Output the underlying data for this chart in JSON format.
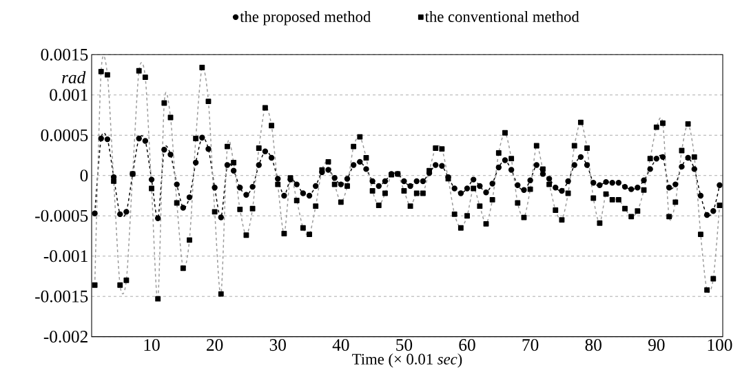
{
  "chart_data": {
    "type": "line",
    "xlabel": "Time (× 0.01 *sec*)",
    "ylabel": "rad",
    "x": [
      1,
      2,
      3,
      4,
      5,
      6,
      7,
      8,
      9,
      10,
      11,
      12,
      13,
      14,
      15,
      16,
      17,
      18,
      19,
      20,
      21,
      22,
      23,
      24,
      25,
      26,
      27,
      28,
      29,
      30,
      31,
      32,
      33,
      34,
      35,
      36,
      37,
      38,
      39,
      40,
      41,
      42,
      43,
      44,
      45,
      46,
      47,
      48,
      49,
      50,
      51,
      52,
      53,
      54,
      55,
      56,
      57,
      58,
      59,
      60,
      61,
      62,
      63,
      64,
      65,
      66,
      67,
      68,
      69,
      70,
      71,
      72,
      73,
      74,
      75,
      76,
      77,
      78,
      79,
      80,
      81,
      82,
      83,
      84,
      85,
      86,
      87,
      88,
      89,
      90,
      91,
      92,
      93,
      94,
      95,
      96,
      97,
      98,
      99,
      100
    ],
    "xlim": [
      0.5,
      100.5
    ],
    "xticks": [
      10,
      20,
      30,
      40,
      50,
      60,
      70,
      80,
      90,
      100
    ],
    "ylim": [
      -0.002,
      0.0015
    ],
    "yticks": [
      -0.002,
      -0.0015,
      -0.001,
      -0.0005,
      0,
      0.0005,
      0.001,
      0.0015
    ],
    "grid": "y",
    "legend": "top",
    "series": [
      {
        "name": "the proposed method",
        "color": "#000000",
        "marker": "circle",
        "line_style": "dashed",
        "values": [
          -0.00047,
          0.00046,
          0.00045,
          -2e-05,
          -0.00048,
          -0.00045,
          2e-05,
          0.00046,
          0.00043,
          -5e-05,
          -0.00053,
          0.00032,
          0.00026,
          -0.00011,
          -0.0004,
          -0.00027,
          0.00016,
          0.00047,
          0.00033,
          -0.00015,
          -0.00052,
          0.00013,
          6e-05,
          -0.00015,
          -0.00024,
          -0.00014,
          0.00013,
          0.0003,
          0.00022,
          -4e-05,
          -0.00025,
          -5e-05,
          -0.00011,
          -0.00022,
          -0.00025,
          -0.00013,
          4e-05,
          7e-05,
          -3e-05,
          -0.00011,
          -4e-05,
          0.00013,
          0.00017,
          8e-05,
          -7e-05,
          -0.00013,
          -7e-05,
          2e-05,
          2e-05,
          -7e-05,
          -0.00013,
          -7e-05,
          -7e-05,
          3e-05,
          0.00013,
          0.00012,
          -2e-05,
          -0.00016,
          -0.00022,
          -0.00016,
          -5e-05,
          -0.00013,
          -0.00021,
          -0.0001,
          0.0001,
          0.00019,
          7e-05,
          -0.00012,
          -0.00018,
          -6e-05,
          0.00013,
          2e-05,
          -4e-05,
          -0.00015,
          -0.00019,
          -7e-05,
          0.00013,
          0.00023,
          0.00013,
          -9e-05,
          -0.00012,
          -8e-05,
          -9e-05,
          -9e-05,
          -0.00014,
          -0.00017,
          -0.00015,
          -6e-05,
          8e-05,
          0.00021,
          0.00023,
          -0.00015,
          -0.00011,
          0.00011,
          0.00022,
          8e-05,
          -0.00025,
          -0.00049,
          -0.00044,
          -0.00012
        ]
      },
      {
        "name": "the conventional method",
        "color": "#999999",
        "marker": "square",
        "line_style": "dashed",
        "values": [
          -0.00136,
          0.00129,
          0.00125,
          -7e-05,
          -0.00136,
          -0.0013,
          2e-05,
          0.0013,
          0.00122,
          -0.00016,
          -0.00153,
          0.0009,
          0.00072,
          -0.00034,
          -0.00115,
          -0.0008,
          0.00046,
          0.00134,
          0.00092,
          -0.00045,
          -0.00147,
          0.00036,
          0.00016,
          -0.00042,
          -0.00074,
          -0.00041,
          0.00034,
          0.00084,
          0.00062,
          -0.00011,
          -0.00072,
          -3e-05,
          -0.00031,
          -0.00065,
          -0.00073,
          -0.00038,
          7e-05,
          0.00017,
          -0.00011,
          -0.00033,
          -0.00013,
          0.00036,
          0.00048,
          0.00022,
          -0.00019,
          -0.00037,
          -0.00022,
          1e-05,
          2e-05,
          -0.00019,
          -0.00038,
          -0.00022,
          -0.00022,
          6e-05,
          0.00034,
          0.00033,
          -4e-05,
          -0.00048,
          -0.00065,
          -0.0005,
          -0.00016,
          -0.00038,
          -0.0006,
          -0.0003,
          0.00028,
          0.00053,
          0.00021,
          -0.00034,
          -0.00052,
          -0.00017,
          0.00037,
          8e-05,
          -0.00011,
          -0.00043,
          -0.00055,
          -0.00022,
          0.00037,
          0.00066,
          0.00034,
          -0.00028,
          -0.00059,
          -0.00023,
          -0.0003,
          -0.0003,
          -0.00041,
          -0.00051,
          -0.00044,
          -0.00018,
          0.00021,
          0.0006,
          0.00065,
          -0.00051,
          -0.00033,
          0.00031,
          0.00064,
          0.00023,
          -0.00073,
          -0.00142,
          -0.00128,
          -0.00037
        ]
      }
    ]
  }
}
